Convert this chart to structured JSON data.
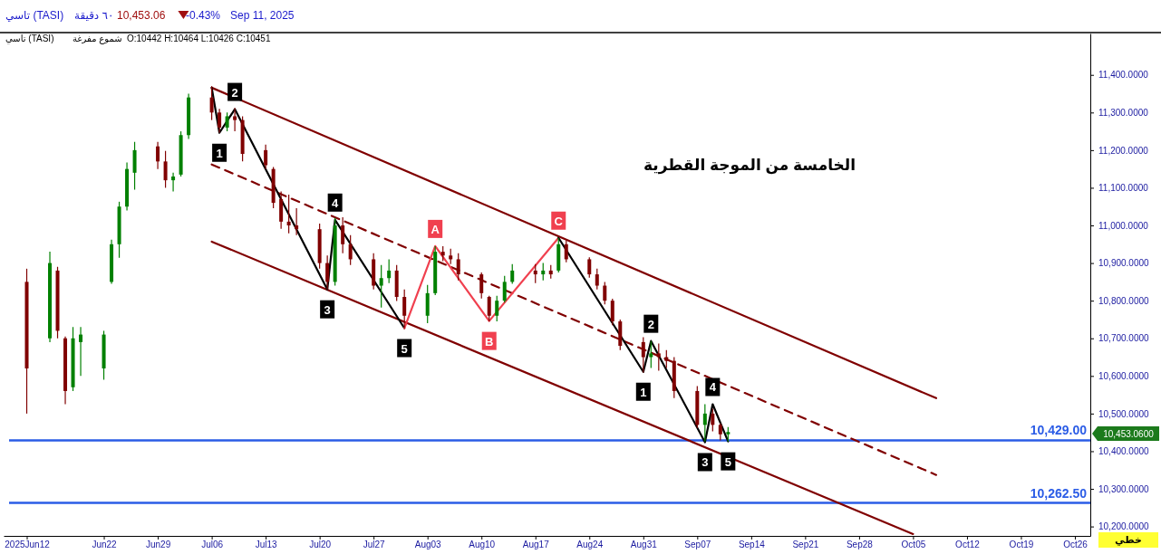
{
  "chart_data": {
    "type": "candlestick",
    "title": "تاسي (TASI)",
    "annotations": [
      "٦٠ دقيقة",
      "10,453.06",
      "-0.43%",
      "Sep 11, 2025",
      "تاسي (TASI)",
      "شموع مفرغة",
      "O:10442 H:10464 L:10426 C:10451",
      "الخامسة من الموجة القطرية",
      "10,453.0600",
      "خطي",
      {
        "text": "1",
        "x": "2025-07-07",
        "y": 11246
      },
      {
        "text": "2",
        "x": "2025-07-09",
        "y": 11309
      },
      {
        "text": "3",
        "x": "2025-07-21",
        "y": 10830
      },
      {
        "text": "4",
        "x": "2025-07-22",
        "y": 11015
      },
      {
        "text": "5",
        "x": "2025-07-31",
        "y": 10727
      },
      {
        "text": "A",
        "x": "2025-08-04",
        "y": 10945
      },
      {
        "text": "B",
        "x": "2025-08-11",
        "y": 10746
      },
      {
        "text": "C",
        "x": "2025-08-20",
        "y": 10967
      },
      {
        "text": "1",
        "x": "2025-08-31",
        "y": 10611
      },
      {
        "text": "2",
        "x": "2025-09-01",
        "y": 10693
      },
      {
        "text": "3",
        "x": "2025-09-08",
        "y": 10424
      },
      {
        "text": "4",
        "x": "2025-09-09",
        "y": 10525
      },
      {
        "text": "5",
        "x": "2025-09-11",
        "y": 10426
      }
    ],
    "x": [
      "2025-06-12",
      "2025-06-15",
      "2025-06-16",
      "2025-06-17",
      "2025-06-18",
      "2025-06-19",
      "2025-06-22",
      "2025-06-23",
      "2025-06-24",
      "2025-06-25",
      "2025-06-26",
      "2025-06-29",
      "2025-06-30",
      "2025-07-01",
      "2025-07-02",
      "2025-07-03",
      "2025-07-06",
      "2025-07-07",
      "2025-07-08",
      "2025-07-09",
      "2025-07-10",
      "2025-07-13",
      "2025-07-14",
      "2025-07-15",
      "2025-07-16",
      "2025-07-17",
      "2025-07-20",
      "2025-07-21",
      "2025-07-22",
      "2025-07-23",
      "2025-07-24",
      "2025-07-27",
      "2025-07-28",
      "2025-07-29",
      "2025-07-30",
      "2025-07-31",
      "2025-08-03",
      "2025-08-04",
      "2025-08-05",
      "2025-08-06",
      "2025-08-07",
      "2025-08-10",
      "2025-08-11",
      "2025-08-12",
      "2025-08-13",
      "2025-08-14",
      "2025-08-17",
      "2025-08-18",
      "2025-08-19",
      "2025-08-20",
      "2025-08-21",
      "2025-08-24",
      "2025-08-25",
      "2025-08-26",
      "2025-08-27",
      "2025-08-28",
      "2025-08-31",
      "2025-09-01",
      "2025-09-02",
      "2025-09-03",
      "2025-09-04",
      "2025-09-07",
      "2025-09-08",
      "2025-09-09",
      "2025-09-10",
      "2025-09-11"
    ],
    "ohlc": [
      [
        10850,
        10885,
        10500,
        10620
      ],
      [
        10700,
        10930,
        10690,
        10900
      ],
      [
        10880,
        10890,
        10700,
        10720
      ],
      [
        10700,
        10705,
        10525,
        10560
      ],
      [
        10570,
        10730,
        10560,
        10700
      ],
      [
        10690,
        10730,
        10600,
        10710
      ],
      [
        10620,
        10720,
        10590,
        10710
      ],
      [
        10850,
        10962,
        10845,
        10950
      ],
      [
        10950,
        11063,
        10914,
        11050
      ],
      [
        11050,
        11167,
        11040,
        11150
      ],
      [
        11140,
        11222,
        11095,
        11200
      ],
      [
        11210,
        11222,
        11150,
        11170
      ],
      [
        11170,
        11198,
        11100,
        11120
      ],
      [
        11120,
        11140,
        11090,
        11130
      ],
      [
        11135,
        11250,
        11130,
        11240
      ],
      [
        11240,
        11350,
        11230,
        11340
      ],
      [
        11340,
        11370,
        11280,
        11300
      ],
      [
        11300,
        11310,
        11246,
        11260
      ],
      [
        11260,
        11300,
        11250,
        11290
      ],
      [
        11290,
        11312,
        11250,
        11280
      ],
      [
        11280,
        11290,
        11170,
        11190
      ],
      [
        11200,
        11215,
        11150,
        11160
      ],
      [
        11150,
        11155,
        11046,
        11060
      ],
      [
        11070,
        11090,
        10991,
        11010
      ],
      [
        11010,
        11082,
        10979,
        11000
      ],
      [
        11000,
        11046,
        10974,
        10990
      ],
      [
        10990,
        11005,
        10885,
        10900
      ],
      [
        10900,
        10920,
        10830,
        10850
      ],
      [
        10850,
        11020,
        10840,
        11000
      ],
      [
        11000,
        11022,
        10926,
        10950
      ],
      [
        10950,
        10974,
        10895,
        10910
      ],
      [
        10910,
        10926,
        10830,
        10840
      ],
      [
        10840,
        10895,
        10782,
        10860
      ],
      [
        10860,
        10910,
        10847,
        10880
      ],
      [
        10880,
        10895,
        10799,
        10810
      ],
      [
        10810,
        10830,
        10727,
        10760
      ],
      [
        10760,
        10842,
        10740,
        10820
      ],
      [
        10820,
        10945,
        10815,
        10930
      ],
      [
        10930,
        10945,
        10905,
        10920
      ],
      [
        10920,
        10938,
        10897,
        10910
      ],
      [
        10910,
        10926,
        10854,
        10870
      ],
      [
        10870,
        10875,
        10806,
        10820
      ],
      [
        10810,
        10813,
        10745,
        10760
      ],
      [
        10760,
        10813,
        10745,
        10800
      ],
      [
        10800,
        10866,
        10795,
        10850
      ],
      [
        10850,
        10897,
        10845,
        10880
      ],
      [
        10880,
        10897,
        10847,
        10870
      ],
      [
        10870,
        10900,
        10854,
        10880
      ],
      [
        10880,
        10895,
        10859,
        10870
      ],
      [
        10880,
        10967,
        10875,
        10950
      ],
      [
        10950,
        10960,
        10902,
        10910
      ],
      [
        10910,
        10915,
        10861,
        10870
      ],
      [
        10870,
        10885,
        10830,
        10840
      ],
      [
        10840,
        10850,
        10790,
        10800
      ],
      [
        10800,
        10805,
        10735,
        10745
      ],
      [
        10745,
        10750,
        10669,
        10680
      ],
      [
        10690,
        10703,
        10609,
        10650
      ],
      [
        10650,
        10693,
        10621,
        10660
      ],
      [
        10660,
        10686,
        10614,
        10650
      ],
      [
        10650,
        10669,
        10621,
        10640
      ],
      [
        10640,
        10650,
        10541,
        10560
      ],
      [
        10560,
        10573,
        10462,
        10470
      ],
      [
        10470,
        10525,
        10426,
        10500
      ],
      [
        10500,
        10513,
        10453,
        10470
      ],
      [
        10470,
        10475,
        10429,
        10445
      ],
      [
        10445,
        10464,
        10426,
        10451
      ]
    ],
    "series": [
      {
        "type": "line",
        "color": "#800000",
        "x": [
          "2025-07-06",
          "2025-10-08"
        ],
        "values": [
          11366,
          10541
        ]
      },
      {
        "type": "line",
        "color": "#800000",
        "line_style": "dashed",
        "x": [
          "2025-07-06",
          "2025-10-08"
        ],
        "values": [
          11162,
          10337
        ]
      },
      {
        "type": "line",
        "color": "#800000",
        "x": [
          "2025-07-06",
          "2025-10-05"
        ],
        "values": [
          10957,
          10180
        ]
      },
      {
        "type": "line",
        "color": "#000000",
        "x": [
          "2025-07-06",
          "2025-07-07",
          "2025-07-09",
          "2025-07-21",
          "2025-07-22",
          "2025-07-31"
        ],
        "values": [
          11366,
          11246,
          11309,
          10830,
          11015,
          10727
        ]
      },
      {
        "type": "line",
        "color": "#f0404f",
        "x": [
          "2025-07-31",
          "2025-08-04",
          "2025-08-11",
          "2025-08-20"
        ],
        "values": [
          10727,
          10945,
          10746,
          10967
        ]
      },
      {
        "type": "line",
        "color": "#000000",
        "x": [
          "2025-08-20",
          "2025-08-31",
          "2025-09-01",
          "2025-09-08",
          "2025-09-09",
          "2025-09-11"
        ],
        "values": [
          10967,
          10611,
          10693,
          10424,
          10525,
          10426
        ]
      }
    ],
    "ref_lines": [
      {
        "axis": "y",
        "value": 10429,
        "label": "10,429.00",
        "color": "#2b5ce6"
      },
      {
        "axis": "y",
        "value": 10262.5,
        "label": "10,262.50",
        "color": "#2b5ce6"
      }
    ],
    "xlim": [
      "2025-06-09",
      "2025-10-28"
    ],
    "xticks": [
      {
        "value": "2025-06-12",
        "label": "2025Jun12"
      },
      {
        "value": "2025-06-22",
        "label": "Jun22"
      },
      {
        "value": "2025-06-29",
        "label": "Jun29"
      },
      {
        "value": "2025-07-06",
        "label": "Jul06"
      },
      {
        "value": "2025-07-13",
        "label": "Jul13"
      },
      {
        "value": "2025-07-20",
        "label": "Jul20"
      },
      {
        "value": "2025-07-27",
        "label": "Jul27"
      },
      {
        "value": "2025-08-03",
        "label": "Aug03"
      },
      {
        "value": "2025-08-10",
        "label": "Aug10"
      },
      {
        "value": "2025-08-17",
        "label": "Aug17"
      },
      {
        "value": "2025-08-24",
        "label": "Aug24"
      },
      {
        "value": "2025-08-31",
        "label": "Aug31"
      },
      {
        "value": "2025-09-07",
        "label": "Sep07"
      },
      {
        "value": "2025-09-14",
        "label": "Sep14"
      },
      {
        "value": "2025-09-21",
        "label": "Sep21"
      },
      {
        "value": "2025-09-28",
        "label": "Sep28"
      },
      {
        "value": "2025-10-05",
        "label": "Oct05"
      },
      {
        "value": "2025-10-12",
        "label": "Oct12"
      },
      {
        "value": "2025-10-19",
        "label": "Oct19"
      },
      {
        "value": "2025-10-26",
        "label": "Oct26"
      }
    ],
    "ylim": [
      10175,
      11510
    ],
    "yticks": [
      {
        "value": 10200,
        "label": "10,200.0000"
      },
      {
        "value": 10300,
        "label": "10,300.0000"
      },
      {
        "value": 10400,
        "label": "10,400.0000"
      },
      {
        "value": 10500,
        "label": "10,500.0000"
      },
      {
        "value": 10600,
        "label": "10,600.0000"
      },
      {
        "value": 10700,
        "label": "10,700.0000"
      },
      {
        "value": 10800,
        "label": "10,800.0000"
      },
      {
        "value": 10900,
        "label": "10,900.0000"
      },
      {
        "value": 11000,
        "label": "11,000.0000"
      },
      {
        "value": 11100,
        "label": "11,100.0000"
      },
      {
        "value": 11200,
        "label": "11,200.0000"
      },
      {
        "value": 11300,
        "label": "11,300.0000"
      },
      {
        "value": 11400,
        "label": "11,400.0000"
      }
    ]
  }
}
